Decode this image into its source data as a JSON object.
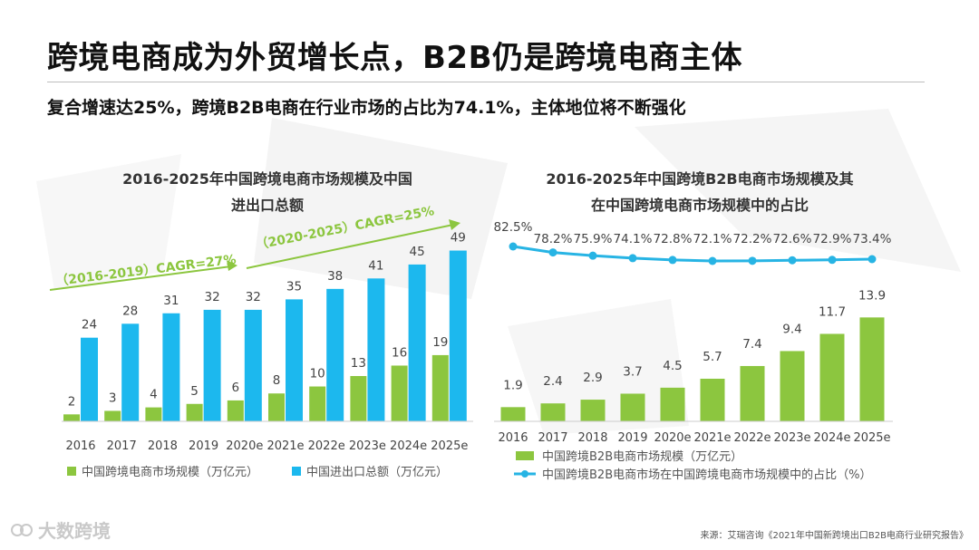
{
  "title": "跨境电商成为外贸增长点，B2B仍是跨境电商主体",
  "subtitle": "复合增速达25%，跨境B2B电商在行业市场的占比为74.1%，主体地位将不断强化",
  "source": "来源：艾瑞咨询《2021年中国新跨境出口B2B电商行业研究报告》",
  "logo_text": "大数跨境",
  "colors": {
    "green": "#8cc63f",
    "blue": "#1cb8ee",
    "line": "#27b4e4",
    "axis": "#cccccc"
  },
  "chart_data": [
    {
      "type": "bar",
      "title_lines": [
        "2016-2025年中国跨境电商市场规模及中国",
        "进出口总额"
      ],
      "categories": [
        "2016",
        "2017",
        "2018",
        "2019",
        "2020e",
        "2021e",
        "2022e",
        "2023e",
        "2024e",
        "2025e"
      ],
      "series": [
        {
          "name": "中国跨境电商市场规模（万亿元）",
          "values": [
            2,
            3,
            4,
            5,
            6,
            8,
            10,
            13,
            16,
            19
          ]
        },
        {
          "name": "中国进出口总额（万亿元）",
          "values": [
            24,
            28,
            31,
            32,
            32,
            35,
            38,
            41,
            45,
            49
          ]
        }
      ],
      "ylim": [
        0,
        52
      ],
      "annotations": [
        "（2016-2019）CAGR=27%",
        "（2020-2025）CAGR=25%"
      ]
    },
    {
      "type": "bar+line",
      "title_lines": [
        "2016-2025年中国跨境B2B电商市场规模及其",
        "在中国跨境电商市场规模中的占比"
      ],
      "categories": [
        "2016",
        "2017",
        "2018",
        "2019",
        "2020e",
        "2021e",
        "2022e",
        "2023e",
        "2024e",
        "2025e"
      ],
      "bar_series": {
        "name": "中国跨境B2B电商市场规模（万亿元）",
        "values": [
          1.9,
          2.4,
          2.9,
          3.7,
          4.5,
          5.7,
          7.4,
          9.4,
          11.7,
          13.9
        ]
      },
      "line_series": {
        "name": "中国跨境B2B电商市场在中国跨境电商市场规模中的占比（%）",
        "values": [
          82.5,
          78.2,
          75.9,
          74.1,
          72.8,
          72.1,
          72.2,
          72.6,
          72.9,
          73.4
        ],
        "labels": [
          "82.5%",
          "78.2%",
          "75.9%",
          "74.1%",
          "72.8%",
          "72.1%",
          "72.2%",
          "72.6%",
          "72.9%",
          "73.4%"
        ]
      },
      "ylim_bar": [
        0,
        16
      ]
    }
  ]
}
